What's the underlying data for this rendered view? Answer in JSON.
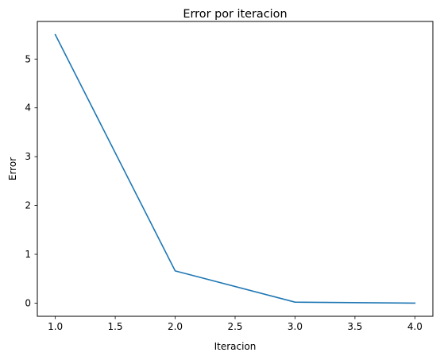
{
  "chart_data": {
    "type": "line",
    "title": "Error por iteracion",
    "xlabel": "Iteracion",
    "ylabel": "Error",
    "xlim": [
      0.85,
      4.15
    ],
    "ylim": [
      -0.27,
      5.77
    ],
    "x_ticks": [
      1.0,
      1.5,
      2.0,
      2.5,
      3.0,
      3.5,
      4.0
    ],
    "x_tick_labels": [
      "1.0",
      "1.5",
      "2.0",
      "2.5",
      "3.0",
      "3.5",
      "4.0"
    ],
    "y_ticks": [
      0,
      1,
      2,
      3,
      4,
      5
    ],
    "y_tick_labels": [
      "0",
      "1",
      "2",
      "3",
      "4",
      "5"
    ],
    "grid": false,
    "series": [
      {
        "x": [
          1.0,
          2.0,
          3.0,
          4.0
        ],
        "y": [
          5.5,
          0.66,
          0.02,
          0.0
        ],
        "color": "#1f77b4"
      }
    ]
  }
}
